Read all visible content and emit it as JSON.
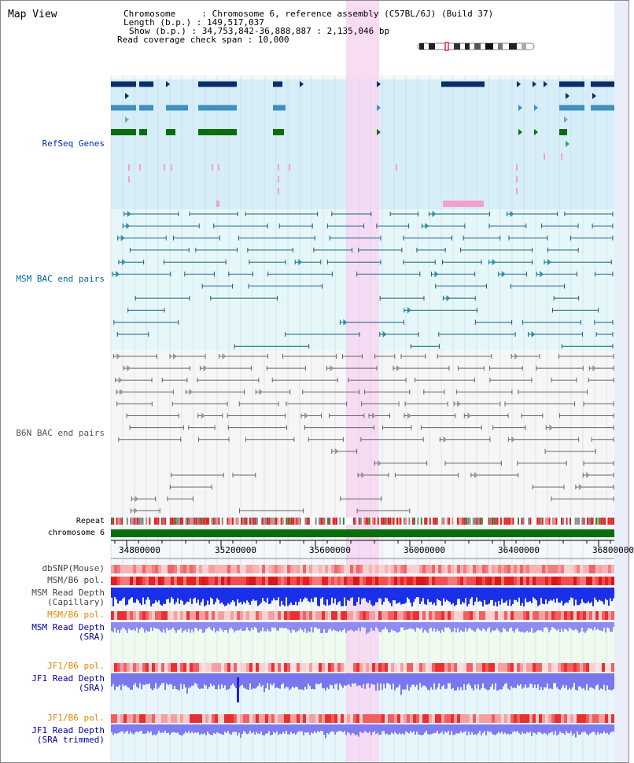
{
  "app": {
    "title": "Map View"
  },
  "header": {
    "chromosome_label": "Chromosome",
    "chromosome_value": ": Chromosome 6, reference assembly (C57BL/6J) (Build 37)",
    "length_label": "Length (b.p.)",
    "length_value": ": 149,517,037",
    "show_label": "Show (b.p.)",
    "show_value": ": 34,753,842-36,888,887 : 2,135,046 bp",
    "coverage_label": "Read coverage check span",
    "coverage_value": ": 10,000"
  },
  "tracks": {
    "refseq": "RefSeq Genes",
    "msm_bac": "MSM BAC end pairs",
    "b6n_bac": "B6N BAC end pairs",
    "repeat": "Repeat",
    "chromosome": "chromosome 6",
    "dbsnp": "dbSNP(Mouse)",
    "msm_b6_pol": "MSM/B6 pol.",
    "msm_read_depth_cap_1": "MSM Read Depth",
    "msm_read_depth_cap_2": "(Capillary)",
    "msm_b6_pol_2": "MSM/B6 pol.",
    "msm_read_depth_sra_1": "MSM Read Depth",
    "msm_read_depth_sra_2": "(SRA)",
    "jf1_b6_pol": "JF1/B6 pol.",
    "jf1_read_depth_sra_1": "JF1 Read Depth",
    "jf1_read_depth_sra_2": "(SRA)",
    "jf1_b6_pol_2": "JF1/B6 pol.",
    "jf1_read_depth_trim_1": "JF1 Read Depth",
    "jf1_read_depth_trim_2": "(SRA trimmed)"
  },
  "axis": {
    "ticks": [
      "34800000",
      "35200000",
      "35600000",
      "36000000",
      "36400000",
      "36800000"
    ]
  },
  "colors": {
    "refseq_label": "#0033aa",
    "msm_label": "#006699",
    "b6n_label": "#555555",
    "orange_label": "#e08a00",
    "navy_label": "#000099",
    "highlight": "#f7d6f2",
    "refseq_bg": "#d6eef8",
    "msm_bg": "#e6f7f9",
    "chromosome_bar": "#0a6e0a"
  }
}
